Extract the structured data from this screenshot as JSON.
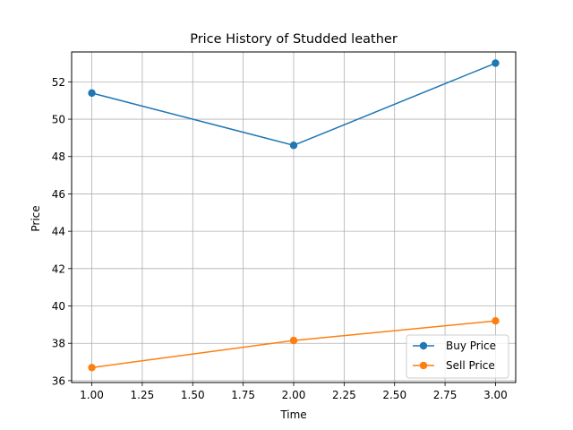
{
  "chart_data": {
    "type": "line",
    "title": "Price History of Studded leather",
    "xlabel": "Time",
    "ylabel": "Price",
    "x": [
      1.0,
      2.0,
      3.0
    ],
    "xlim": [
      0.9,
      3.1
    ],
    "ylim": [
      35.9,
      53.6
    ],
    "xticks": [
      1.0,
      1.25,
      1.5,
      1.75,
      2.0,
      2.25,
      2.5,
      2.75,
      3.0
    ],
    "xtick_labels": [
      "1.00",
      "1.25",
      "1.50",
      "1.75",
      "2.00",
      "2.25",
      "2.50",
      "2.75",
      "3.00"
    ],
    "yticks": [
      36,
      38,
      40,
      42,
      44,
      46,
      48,
      50,
      52
    ],
    "ytick_labels": [
      "36",
      "38",
      "40",
      "42",
      "44",
      "46",
      "48",
      "50",
      "52"
    ],
    "grid": true,
    "legend_position": "lower-right",
    "series": [
      {
        "name": "Buy Price",
        "values": [
          51.4,
          48.6,
          53.0
        ],
        "color": "#1f77b4",
        "marker": "circle"
      },
      {
        "name": "Sell Price",
        "values": [
          36.7,
          38.15,
          39.2
        ],
        "color": "#ff7f0e",
        "marker": "circle"
      }
    ]
  }
}
